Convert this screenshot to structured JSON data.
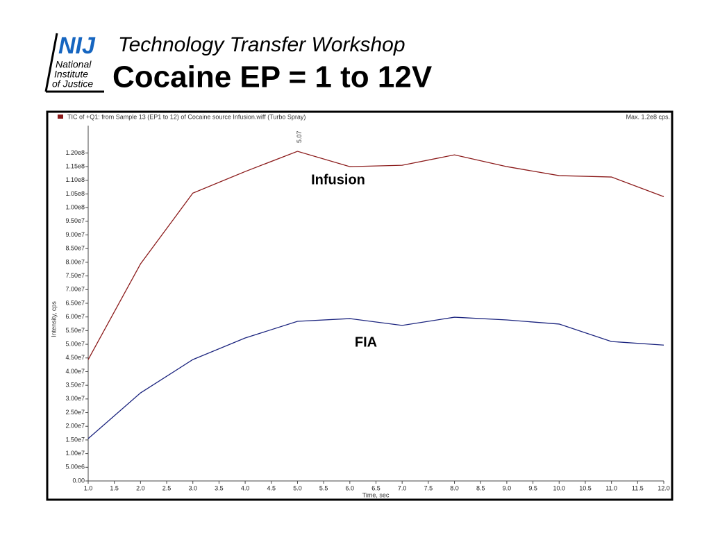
{
  "header": {
    "subtitle": "Technology Transfer Workshop",
    "title": "Cocaine EP = 1 to 12V"
  },
  "logo": {
    "mark": "NIJ",
    "lines": [
      "National",
      "Institute",
      "of Justice"
    ]
  },
  "chart_data": {
    "type": "line",
    "legend_text": "TIC of +Q1: from Sample 13 (EP1 to 12) of Cocaine source Infusion.wiff (Turbo Spray)",
    "max_text": "Max. 1.2e8 cps.",
    "peak_label": "5.07",
    "x_label": "Time, sec",
    "y_label": "Intensity, cps",
    "x": [
      1,
      2,
      3,
      4,
      5,
      6,
      7,
      8,
      9,
      10,
      11,
      12
    ],
    "series": [
      {
        "name": "Infusion",
        "color": "#8b1a1a",
        "values": [
          44400000,
          79400000,
          105300000,
          113200000,
          120600000,
          115000000,
          115500000,
          119300000,
          115000000,
          111700000,
          111200000,
          104000000
        ]
      },
      {
        "name": "FIA",
        "color": "#1a237e",
        "values": [
          15500000,
          32200000,
          44400000,
          52300000,
          58400000,
          59400000,
          56900000,
          59900000,
          58900000,
          57400000,
          51000000,
          49700000
        ]
      }
    ],
    "xlim": [
      1,
      12
    ],
    "xticks": [
      {
        "value": 1,
        "label": "1.0"
      },
      {
        "value": 1.5,
        "label": "1.5"
      },
      {
        "value": 2,
        "label": "2.0"
      },
      {
        "value": 2.5,
        "label": "2.5"
      },
      {
        "value": 3,
        "label": "3.0"
      },
      {
        "value": 3.5,
        "label": "3.5"
      },
      {
        "value": 4,
        "label": "4.0"
      },
      {
        "value": 4.5,
        "label": "4.5"
      },
      {
        "value": 5,
        "label": "5.0"
      },
      {
        "value": 5.5,
        "label": "5.5"
      },
      {
        "value": 6,
        "label": "6.0"
      },
      {
        "value": 6.5,
        "label": "6.5"
      },
      {
        "value": 7,
        "label": "7.0"
      },
      {
        "value": 7.5,
        "label": "7.5"
      },
      {
        "value": 8,
        "label": "8.0"
      },
      {
        "value": 8.5,
        "label": "8.5"
      },
      {
        "value": 9,
        "label": "9.0"
      },
      {
        "value": 9.5,
        "label": "9.5"
      },
      {
        "value": 10,
        "label": "10.0"
      },
      {
        "value": 10.5,
        "label": "10.5"
      },
      {
        "value": 11,
        "label": "11.0"
      },
      {
        "value": 11.5,
        "label": "11.5"
      },
      {
        "value": 12,
        "label": "12.0"
      }
    ],
    "ylim": [
      0,
      130000000
    ],
    "yticks": [
      {
        "value": 0,
        "label": "0.00"
      },
      {
        "value": 5000000,
        "label": "5.00e6"
      },
      {
        "value": 10000000,
        "label": "1.00e7"
      },
      {
        "value": 15000000,
        "label": "1.50e7"
      },
      {
        "value": 20000000,
        "label": "2.00e7"
      },
      {
        "value": 25000000,
        "label": "2.50e7"
      },
      {
        "value": 30000000,
        "label": "3.00e7"
      },
      {
        "value": 35000000,
        "label": "3.50e7"
      },
      {
        "value": 40000000,
        "label": "4.00e7"
      },
      {
        "value": 45000000,
        "label": "4.50e7"
      },
      {
        "value": 50000000,
        "label": "5.00e7"
      },
      {
        "value": 55000000,
        "label": "5.50e7"
      },
      {
        "value": 60000000,
        "label": "6.00e7"
      },
      {
        "value": 65000000,
        "label": "6.50e7"
      },
      {
        "value": 70000000,
        "label": "7.00e7"
      },
      {
        "value": 75000000,
        "label": "7.50e7"
      },
      {
        "value": 80000000,
        "label": "8.00e7"
      },
      {
        "value": 85000000,
        "label": "8.50e7"
      },
      {
        "value": 90000000,
        "label": "9.00e7"
      },
      {
        "value": 95000000,
        "label": "9.50e7"
      },
      {
        "value": 100000000,
        "label": "1.00e8"
      },
      {
        "value": 105000000,
        "label": "1.05e8"
      },
      {
        "value": 110000000,
        "label": "1.10e8"
      },
      {
        "value": 115000000,
        "label": "1.15e8"
      },
      {
        "value": 120000000,
        "label": "1.20e8"
      }
    ],
    "grid": false
  }
}
